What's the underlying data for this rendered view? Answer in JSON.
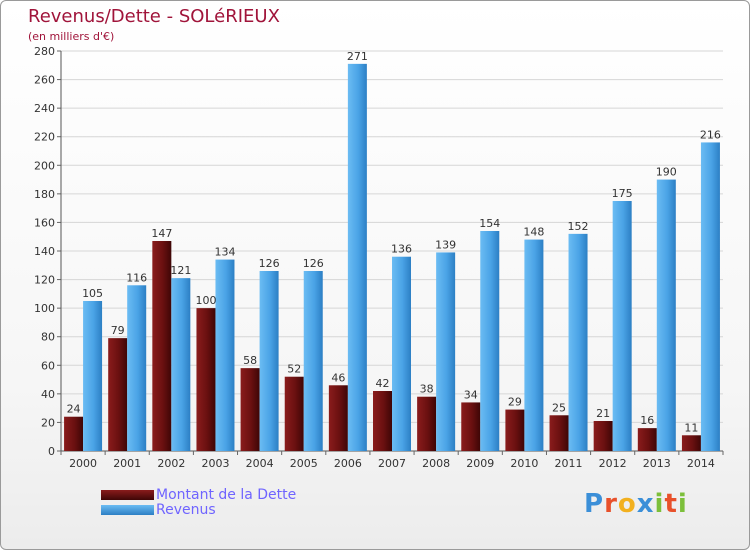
{
  "header": {
    "title": "Revenus/Dette - SOLéRIEUX",
    "subtitle": "(en milliers d'€)"
  },
  "brand": {
    "text": "Proxiti",
    "letter_colors": [
      "#3b8fd8",
      "#e8502a",
      "#f2b01e",
      "#3b8fd8",
      "#7cbf3a",
      "#e8502a",
      "#7cbf3a"
    ]
  },
  "colors": {
    "dette": "#6f1111",
    "revenus": "#4aa3e6",
    "title": "#a0143a",
    "legend_text": "#6f64ff",
    "grid": "#d6d6d6"
  },
  "chart_data": {
    "type": "bar",
    "title": "Revenus/Dette - SOLéRIEUX",
    "subtitle": "(en milliers d'€)",
    "xlabel": "",
    "ylabel": "",
    "categories": [
      "2000",
      "2001",
      "2002",
      "2003",
      "2004",
      "2005",
      "2006",
      "2007",
      "2008",
      "2009",
      "2010",
      "2011",
      "2012",
      "2013",
      "2014"
    ],
    "series": [
      {
        "name": "Montant de la Dette",
        "color": "#6f1111",
        "values": [
          24,
          79,
          147,
          100,
          58,
          52,
          46,
          42,
          38,
          34,
          29,
          25,
          21,
          16,
          11
        ]
      },
      {
        "name": "Revenus",
        "color": "#4aa3e6",
        "values": [
          105,
          116,
          121,
          134,
          126,
          126,
          271,
          136,
          139,
          154,
          148,
          152,
          175,
          190,
          216
        ]
      }
    ],
    "ylim": [
      0,
      280
    ],
    "yticks": [
      0,
      20,
      40,
      60,
      80,
      100,
      120,
      140,
      160,
      180,
      200,
      220,
      240,
      260,
      280
    ],
    "grid": true,
    "data_labels": true,
    "legend_position": "bottom-left"
  }
}
